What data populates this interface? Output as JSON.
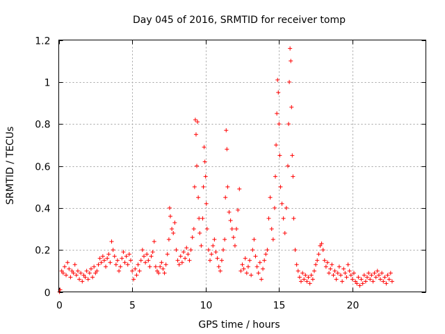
{
  "chart_data": {
    "type": "scatter",
    "title": "Day 045 of 2016, SRMTID for receiver tomp",
    "xlabel": "GPS time / hours",
    "ylabel": "SRMTID / TECUs",
    "xlim": [
      0,
      25
    ],
    "ylim": [
      0,
      1.2
    ],
    "xticks": [
      0,
      5,
      10,
      15,
      20
    ],
    "xtick_labels": [
      "0",
      "5",
      "10",
      "15",
      "20"
    ],
    "yticks": [
      0,
      0.2,
      0.4,
      0.6,
      0.8,
      1.0,
      1.2
    ],
    "ytick_labels": [
      "0",
      "0.2",
      "0.4",
      "0.6",
      "0.8",
      "1",
      "1.2"
    ],
    "grid": true,
    "marker": "+",
    "series": [
      {
        "name": "SRMTID",
        "color": "#ff0000",
        "points": [
          [
            0.05,
            0.0
          ],
          [
            0.1,
            0.01
          ],
          [
            0.2,
            0.1
          ],
          [
            0.3,
            0.09
          ],
          [
            0.4,
            0.12
          ],
          [
            0.5,
            0.08
          ],
          [
            0.6,
            0.14
          ],
          [
            0.7,
            0.11
          ],
          [
            0.8,
            0.07
          ],
          [
            0.9,
            0.1
          ],
          [
            1.0,
            0.09
          ],
          [
            1.1,
            0.13
          ],
          [
            1.2,
            0.08
          ],
          [
            1.3,
            0.1
          ],
          [
            1.4,
            0.06
          ],
          [
            1.5,
            0.09
          ],
          [
            1.6,
            0.05
          ],
          [
            1.7,
            0.08
          ],
          [
            1.8,
            0.07
          ],
          [
            1.9,
            0.1
          ],
          [
            2.0,
            0.06
          ],
          [
            2.1,
            0.09
          ],
          [
            2.2,
            0.11
          ],
          [
            2.3,
            0.07
          ],
          [
            2.4,
            0.12
          ],
          [
            2.5,
            0.09
          ],
          [
            2.6,
            0.1
          ],
          [
            2.7,
            0.13
          ],
          [
            2.8,
            0.16
          ],
          [
            2.9,
            0.14
          ],
          [
            3.0,
            0.17
          ],
          [
            3.1,
            0.15
          ],
          [
            3.2,
            0.12
          ],
          [
            3.3,
            0.16
          ],
          [
            3.4,
            0.18
          ],
          [
            3.5,
            0.14
          ],
          [
            3.6,
            0.24
          ],
          [
            3.7,
            0.2
          ],
          [
            3.8,
            0.17
          ],
          [
            3.9,
            0.13
          ],
          [
            4.0,
            0.15
          ],
          [
            4.1,
            0.1
          ],
          [
            4.2,
            0.12
          ],
          [
            4.3,
            0.16
          ],
          [
            4.4,
            0.19
          ],
          [
            4.5,
            0.14
          ],
          [
            4.6,
            0.17
          ],
          [
            4.7,
            0.13
          ],
          [
            4.8,
            0.18
          ],
          [
            4.9,
            0.15
          ],
          [
            5.0,
            0.1
          ],
          [
            5.1,
            0.06
          ],
          [
            5.2,
            0.11
          ],
          [
            5.3,
            0.08
          ],
          [
            5.4,
            0.13
          ],
          [
            5.5,
            0.1
          ],
          [
            5.6,
            0.15
          ],
          [
            5.7,
            0.2
          ],
          [
            5.8,
            0.17
          ],
          [
            5.9,
            0.14
          ],
          [
            6.0,
            0.18
          ],
          [
            6.1,
            0.15
          ],
          [
            6.2,
            0.12
          ],
          [
            6.3,
            0.17
          ],
          [
            6.4,
            0.19
          ],
          [
            6.5,
            0.24
          ],
          [
            6.6,
            0.12
          ],
          [
            6.7,
            0.1
          ],
          [
            6.8,
            0.09
          ],
          [
            6.9,
            0.12
          ],
          [
            7.0,
            0.14
          ],
          [
            7.1,
            0.11
          ],
          [
            7.2,
            0.09
          ],
          [
            7.3,
            0.13
          ],
          [
            7.4,
            0.18
          ],
          [
            7.5,
            0.25
          ],
          [
            7.55,
            0.4
          ],
          [
            7.6,
            0.36
          ],
          [
            7.7,
            0.3
          ],
          [
            7.8,
            0.28
          ],
          [
            7.9,
            0.33
          ],
          [
            8.0,
            0.2
          ],
          [
            8.1,
            0.15
          ],
          [
            8.2,
            0.13
          ],
          [
            8.3,
            0.17
          ],
          [
            8.4,
            0.14
          ],
          [
            8.5,
            0.19
          ],
          [
            8.6,
            0.16
          ],
          [
            8.7,
            0.21
          ],
          [
            8.8,
            0.18
          ],
          [
            8.9,
            0.15
          ],
          [
            9.0,
            0.2
          ],
          [
            9.1,
            0.26
          ],
          [
            9.2,
            0.3
          ],
          [
            9.25,
            0.5
          ],
          [
            9.3,
            0.82
          ],
          [
            9.35,
            0.75
          ],
          [
            9.4,
            0.6
          ],
          [
            9.45,
            0.81
          ],
          [
            9.5,
            0.45
          ],
          [
            9.55,
            0.35
          ],
          [
            9.6,
            0.28
          ],
          [
            9.7,
            0.22
          ],
          [
            9.8,
            0.35
          ],
          [
            9.85,
            0.5
          ],
          [
            9.9,
            0.69
          ],
          [
            9.95,
            0.62
          ],
          [
            10.0,
            0.55
          ],
          [
            10.05,
            0.42
          ],
          [
            10.1,
            0.3
          ],
          [
            10.2,
            0.2
          ],
          [
            10.3,
            0.15
          ],
          [
            10.4,
            0.18
          ],
          [
            10.5,
            0.22
          ],
          [
            10.6,
            0.25
          ],
          [
            10.7,
            0.19
          ],
          [
            10.8,
            0.16
          ],
          [
            10.9,
            0.12
          ],
          [
            11.0,
            0.1
          ],
          [
            11.1,
            0.15
          ],
          [
            11.2,
            0.2
          ],
          [
            11.3,
            0.25
          ],
          [
            11.35,
            0.45
          ],
          [
            11.4,
            0.77
          ],
          [
            11.45,
            0.68
          ],
          [
            11.5,
            0.5
          ],
          [
            11.6,
            0.38
          ],
          [
            11.7,
            0.34
          ],
          [
            11.8,
            0.3
          ],
          [
            11.9,
            0.26
          ],
          [
            12.0,
            0.22
          ],
          [
            12.1,
            0.3
          ],
          [
            12.2,
            0.39
          ],
          [
            12.3,
            0.49
          ],
          [
            12.4,
            0.1
          ],
          [
            12.5,
            0.13
          ],
          [
            12.6,
            0.11
          ],
          [
            12.7,
            0.16
          ],
          [
            12.8,
            0.09
          ],
          [
            12.9,
            0.12
          ],
          [
            13.0,
            0.15
          ],
          [
            13.1,
            0.08
          ],
          [
            13.2,
            0.2
          ],
          [
            13.3,
            0.25
          ],
          [
            13.4,
            0.17
          ],
          [
            13.5,
            0.12
          ],
          [
            13.6,
            0.09
          ],
          [
            13.7,
            0.14
          ],
          [
            13.8,
            0.06
          ],
          [
            13.9,
            0.11
          ],
          [
            14.0,
            0.15
          ],
          [
            14.1,
            0.18
          ],
          [
            14.2,
            0.2
          ],
          [
            14.3,
            0.35
          ],
          [
            14.4,
            0.45
          ],
          [
            14.5,
            0.3
          ],
          [
            14.6,
            0.25
          ],
          [
            14.7,
            0.4
          ],
          [
            14.75,
            0.55
          ],
          [
            14.8,
            0.7
          ],
          [
            14.85,
            0.85
          ],
          [
            14.9,
            1.01
          ],
          [
            14.95,
            0.95
          ],
          [
            15.0,
            0.8
          ],
          [
            15.05,
            0.65
          ],
          [
            15.1,
            0.5
          ],
          [
            15.2,
            0.42
          ],
          [
            15.3,
            0.35
          ],
          [
            15.4,
            0.28
          ],
          [
            15.5,
            0.4
          ],
          [
            15.6,
            0.6
          ],
          [
            15.65,
            0.8
          ],
          [
            15.7,
            1.0
          ],
          [
            15.75,
            1.16
          ],
          [
            15.8,
            1.1
          ],
          [
            15.85,
            0.88
          ],
          [
            15.9,
            0.65
          ],
          [
            15.95,
            0.55
          ],
          [
            16.0,
            0.35
          ],
          [
            16.1,
            0.2
          ],
          [
            16.2,
            0.13
          ],
          [
            16.3,
            0.1
          ],
          [
            16.4,
            0.07
          ],
          [
            16.5,
            0.05
          ],
          [
            16.6,
            0.09
          ],
          [
            16.7,
            0.06
          ],
          [
            16.8,
            0.08
          ],
          [
            16.9,
            0.05
          ],
          [
            17.0,
            0.07
          ],
          [
            17.1,
            0.04
          ],
          [
            17.2,
            0.08
          ],
          [
            17.3,
            0.06
          ],
          [
            17.4,
            0.1
          ],
          [
            17.5,
            0.13
          ],
          [
            17.6,
            0.15
          ],
          [
            17.7,
            0.18
          ],
          [
            17.8,
            0.22
          ],
          [
            17.9,
            0.23
          ],
          [
            18.0,
            0.2
          ],
          [
            18.1,
            0.15
          ],
          [
            18.2,
            0.12
          ],
          [
            18.3,
            0.14
          ],
          [
            18.4,
            0.09
          ],
          [
            18.5,
            0.11
          ],
          [
            18.6,
            0.13
          ],
          [
            18.7,
            0.08
          ],
          [
            18.8,
            0.1
          ],
          [
            18.9,
            0.06
          ],
          [
            19.0,
            0.09
          ],
          [
            19.1,
            0.12
          ],
          [
            19.2,
            0.08
          ],
          [
            19.3,
            0.05
          ],
          [
            19.4,
            0.11
          ],
          [
            19.5,
            0.09
          ],
          [
            19.6,
            0.07
          ],
          [
            19.7,
            0.13
          ],
          [
            19.8,
            0.1
          ],
          [
            19.9,
            0.08
          ],
          [
            20.0,
            0.06
          ],
          [
            20.1,
            0.09
          ],
          [
            20.2,
            0.05
          ],
          [
            20.3,
            0.04
          ],
          [
            20.4,
            0.07
          ],
          [
            20.5,
            0.03
          ],
          [
            20.6,
            0.06
          ],
          [
            20.7,
            0.04
          ],
          [
            20.8,
            0.08
          ],
          [
            20.9,
            0.05
          ],
          [
            21.0,
            0.07
          ],
          [
            21.1,
            0.09
          ],
          [
            21.2,
            0.06
          ],
          [
            21.3,
            0.08
          ],
          [
            21.4,
            0.05
          ],
          [
            21.5,
            0.09
          ],
          [
            21.6,
            0.07
          ],
          [
            21.7,
            0.1
          ],
          [
            21.8,
            0.08
          ],
          [
            21.9,
            0.06
          ],
          [
            22.0,
            0.09
          ],
          [
            22.1,
            0.05
          ],
          [
            22.2,
            0.07
          ],
          [
            22.3,
            0.04
          ],
          [
            22.4,
            0.08
          ],
          [
            22.5,
            0.06
          ],
          [
            22.6,
            0.09
          ],
          [
            22.7,
            0.05
          ]
        ]
      }
    ]
  }
}
